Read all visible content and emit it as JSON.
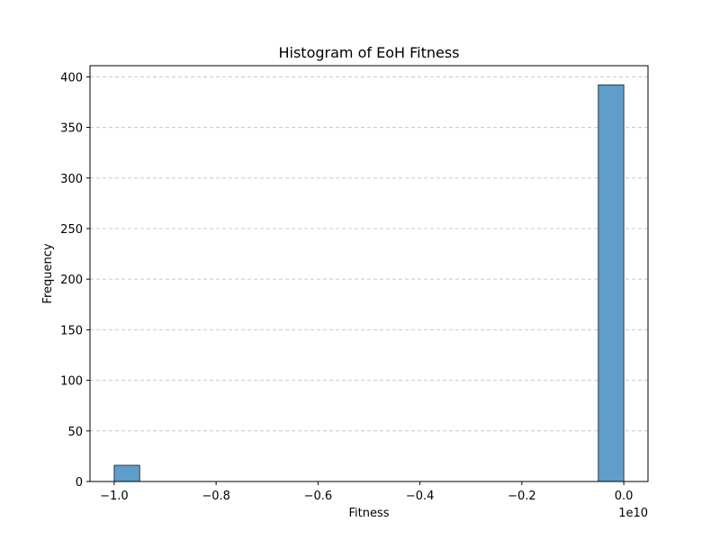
{
  "chart_data": {
    "type": "bar",
    "subtype": "histogram",
    "title": "Histogram of EoH Fitness",
    "xlabel": "Fitness",
    "ylabel": "Frequency",
    "x_offset_text": "1e10",
    "xlim": [
      -1.0475,
      0.0475
    ],
    "ylim": [
      0,
      411
    ],
    "x_ticks": [
      -1.0,
      -0.8,
      -0.6,
      -0.4,
      -0.2,
      0.0
    ],
    "x_tick_labels": [
      "−1.0",
      "−0.8",
      "−0.6",
      "−0.4",
      "−0.2",
      "0.0"
    ],
    "y_ticks": [
      0,
      50,
      100,
      150,
      200,
      250,
      300,
      350,
      400
    ],
    "y_tick_labels": [
      "0",
      "50",
      "100",
      "150",
      "200",
      "250",
      "300",
      "350",
      "400"
    ],
    "bins": [
      {
        "x0": -1.0,
        "x1": -0.95,
        "count": 16
      },
      {
        "x0": -0.05,
        "x1": 0.0,
        "count": 392
      }
    ],
    "grid": {
      "y": true,
      "x": false,
      "style": "dashed"
    },
    "colors": {
      "bar_fill": "#5f9ecb",
      "bar_edge": "#2b3a44",
      "grid": "#c8c8c8",
      "axis": "#000000"
    }
  }
}
